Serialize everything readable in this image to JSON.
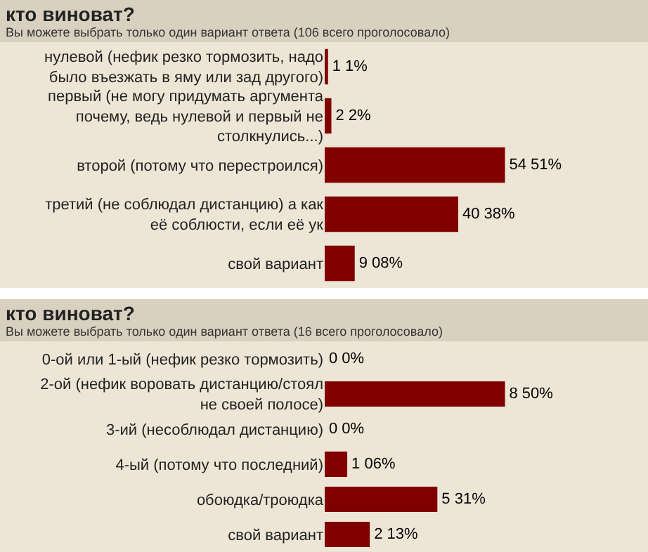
{
  "chart_data": [
    {
      "type": "bar",
      "orientation": "horizontal",
      "title": "кто виноват?",
      "subtitle": "Вы можете выбрать только один вариант ответа (106 всего проголосовало)",
      "categories": [
        "нулевой (нефик резко тормозить, надо было въезжать в яму или зад другого)",
        "первый (не могу придумать аргумента почему, ведь нулевой и первый не столкнулись...)",
        "второй (потому что перестроился)",
        "третий (не соблюдал дистанцию) а как её соблюсти, если её ук",
        "свой вариант"
      ],
      "values": [
        1,
        2,
        54,
        40,
        9
      ],
      "value_labels": [
        "1 1%",
        "2 2%",
        "54 51%",
        "40 38%",
        "9 08%"
      ],
      "color": "#800000",
      "tick_labels": "y",
      "grid": false,
      "legend": false
    },
    {
      "type": "bar",
      "orientation": "horizontal",
      "title": "кто виноват?",
      "subtitle": "Вы можете выбрать только один вариант ответа (16 всего проголосовало)",
      "categories": [
        "0-ой или 1-ый (нефик резко тормозить)",
        "2-ой (нефик воровать дистанцию/стоял не своей полосе)",
        "3-ий (несоблюдал дистанцию)",
        "4-ый (потому что последний)",
        "обоюдка/троюдка",
        "свой вариант"
      ],
      "values": [
        0,
        8,
        0,
        1,
        5,
        2
      ],
      "value_labels": [
        "0 0%",
        "8 50%",
        "0 0%",
        "1 06%",
        "5 31%",
        "2 13%"
      ],
      "color": "#800000",
      "tick_labels": "y",
      "grid": false,
      "legend": false
    }
  ]
}
